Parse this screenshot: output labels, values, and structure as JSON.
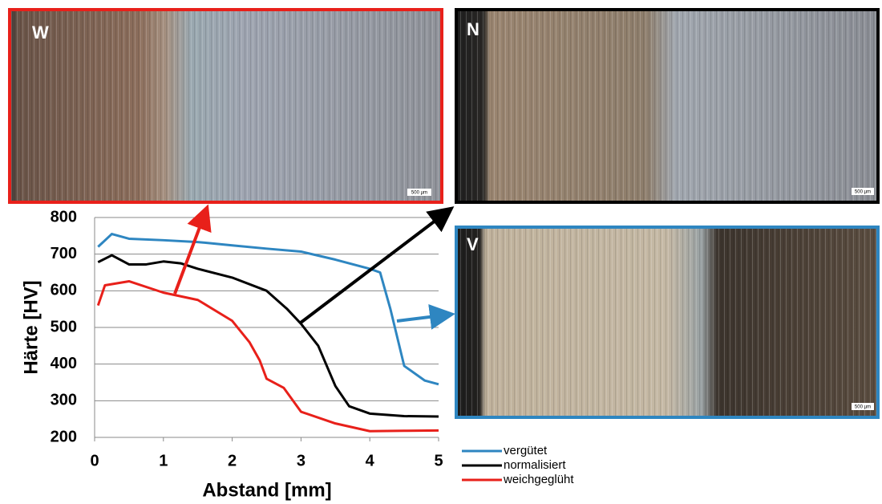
{
  "chart_data": {
    "type": "line",
    "xlabel": "Abstand [mm]",
    "ylabel": "Härte [HV]",
    "xlim": [
      0,
      5
    ],
    "xticks": [
      0,
      1,
      2,
      3,
      4,
      5
    ],
    "ylim": [
      200,
      800
    ],
    "yticks": [
      200,
      300,
      400,
      500,
      600,
      700,
      800
    ],
    "grid": true,
    "series": [
      {
        "name": "vergütet",
        "color": "#2e86c1",
        "x": [
          0.05,
          0.25,
          0.5,
          1,
          1.5,
          2,
          2.5,
          3,
          3.5,
          4,
          4.15,
          4.3,
          4.5,
          4.8,
          5
        ],
        "values": [
          720,
          755,
          742,
          738,
          733,
          724,
          715,
          707,
          685,
          660,
          650,
          550,
          395,
          355,
          345
        ]
      },
      {
        "name": "normalisiert",
        "color": "#000000",
        "x": [
          0.05,
          0.25,
          0.5,
          0.75,
          1,
          1.25,
          1.5,
          2,
          2.5,
          2.8,
          3,
          3.25,
          3.5,
          3.7,
          4,
          4.5,
          5
        ],
        "values": [
          678,
          697,
          672,
          672,
          680,
          675,
          660,
          636,
          600,
          550,
          510,
          450,
          340,
          285,
          265,
          258,
          257
        ]
      },
      {
        "name": "weichgeglüht",
        "color": "#e8201a",
        "x": [
          0.05,
          0.15,
          0.5,
          1,
          1.5,
          2,
          2.25,
          2.4,
          2.5,
          2.75,
          3,
          3.5,
          4,
          4.5,
          5
        ],
        "values": [
          560,
          615,
          626,
          595,
          575,
          518,
          460,
          410,
          360,
          335,
          270,
          238,
          217,
          218,
          219
        ]
      }
    ]
  },
  "panels": [
    {
      "label": "W",
      "scale": "500 µm"
    },
    {
      "label": "N",
      "scale": "500 µm"
    },
    {
      "label": "V",
      "scale": "500 µm"
    }
  ]
}
